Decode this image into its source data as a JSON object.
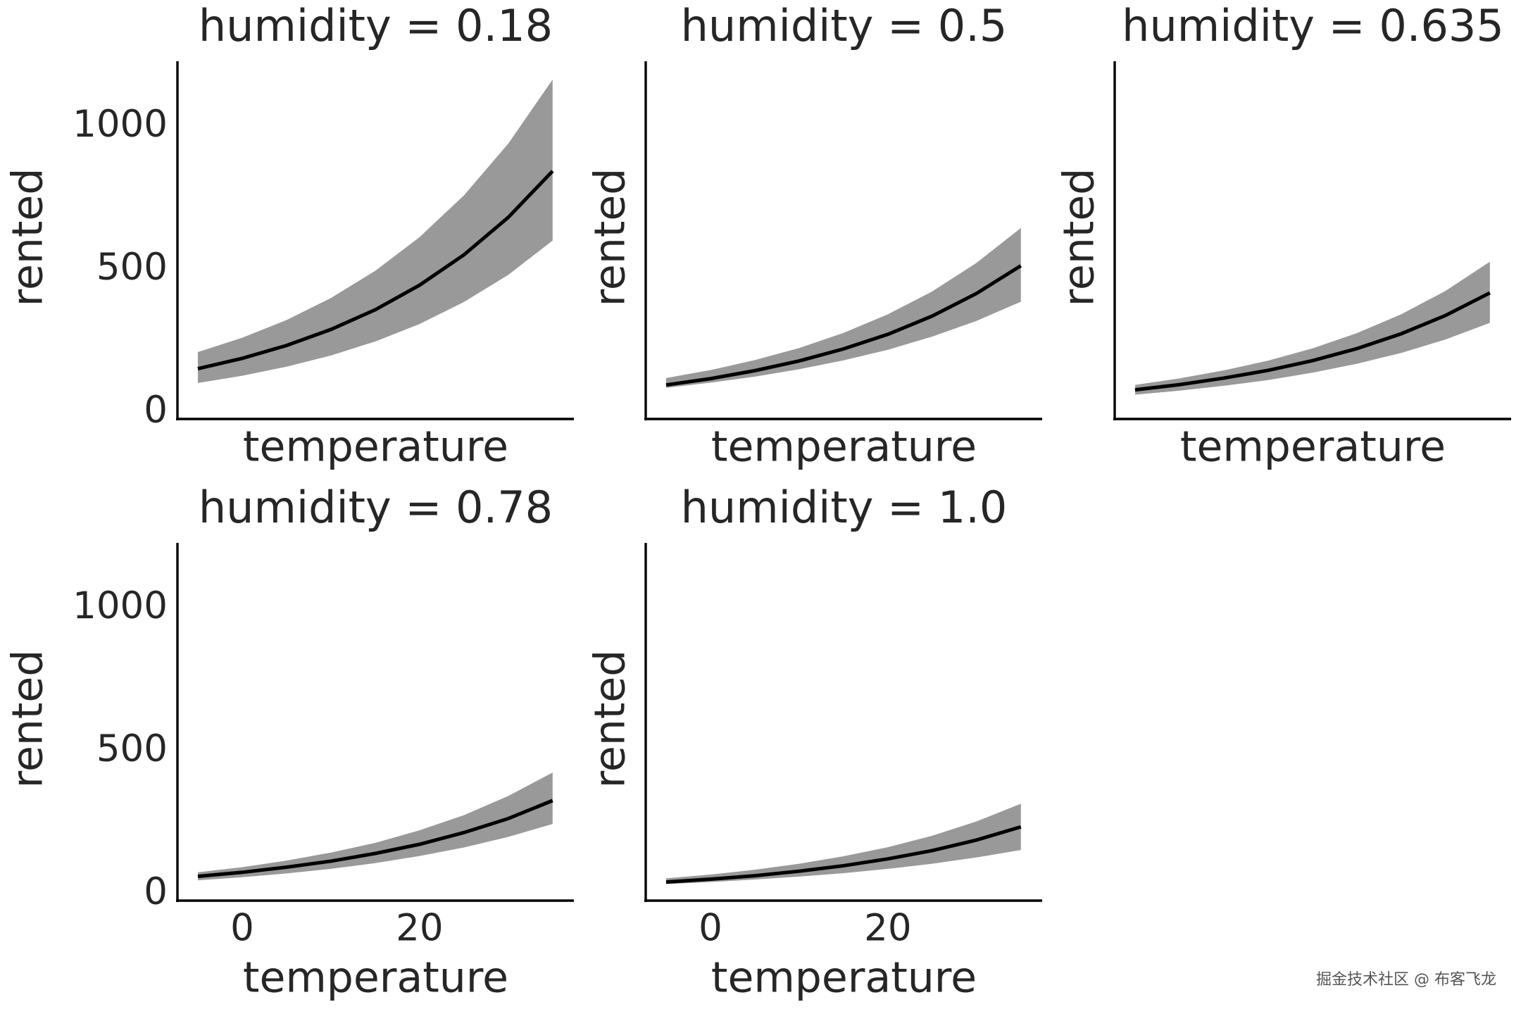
{
  "chart_data": [
    {
      "type": "line",
      "title": "humidity = 0.18",
      "x_label": "temperature",
      "y_label": "rented",
      "x": [
        -5,
        0,
        5,
        10,
        15,
        20,
        25,
        30,
        35
      ],
      "values": [
        152,
        188,
        233,
        289,
        358,
        444,
        550,
        681,
        843
      ],
      "lower": [
        102,
        127,
        159,
        198,
        247,
        308,
        385,
        480,
        600
      ],
      "upper": [
        210,
        260,
        322,
        399,
        494,
        612,
        758,
        939,
        1163
      ],
      "color": "#000000",
      "band_color": "#999999",
      "xlim": [
        -7.3,
        37.4
      ],
      "ylim": [
        -24,
        1227
      ],
      "yticks": [
        0,
        500,
        1000
      ]
    },
    {
      "type": "line",
      "title": "humidity = 0.5",
      "x_label": "temperature",
      "y_label": "rented",
      "x": [
        -5,
        0,
        5,
        10,
        15,
        20,
        25,
        30,
        35
      ],
      "values": [
        95,
        117,
        145,
        179,
        221,
        272,
        336,
        415,
        512
      ],
      "lower": [
        85,
        103,
        124,
        150,
        181,
        218,
        264,
        319,
        386
      ],
      "upper": [
        119,
        147,
        182,
        224,
        277,
        342,
        422,
        522,
        644
      ],
      "color": "#000000",
      "band_color": "#999999",
      "xlim": [
        -7.3,
        37.4
      ],
      "ylim": [
        -24,
        1227
      ]
    },
    {
      "type": "line",
      "title": "humidity = 0.635",
      "x_label": "temperature",
      "y_label": "rented",
      "x": [
        -5,
        0,
        5,
        10,
        15,
        20,
        25,
        30,
        35
      ],
      "values": [
        78,
        96,
        119,
        146,
        180,
        222,
        274,
        338,
        417
      ],
      "lower": [
        61,
        75,
        92,
        112,
        138,
        169,
        207,
        254,
        312
      ],
      "upper": [
        95,
        118,
        146,
        180,
        223,
        276,
        342,
        424,
        526
      ],
      "color": "#000000",
      "band_color": "#999999",
      "xlim": [
        -7.3,
        37.4
      ],
      "ylim": [
        -24,
        1227
      ]
    },
    {
      "type": "line",
      "title": "humidity = 0.78",
      "x_label": "temperature",
      "y_label": "rented",
      "x": [
        -5,
        0,
        5,
        10,
        15,
        20,
        25,
        30,
        35
      ],
      "values": [
        61,
        75,
        93,
        114,
        141,
        173,
        214,
        263,
        326
      ],
      "lower": [
        47,
        58,
        71,
        87,
        107,
        132,
        162,
        199,
        244
      ],
      "upper": [
        75,
        93,
        116,
        144,
        178,
        222,
        275,
        342,
        424
      ],
      "color": "#000000",
      "band_color": "#999999",
      "xlim": [
        -7.3,
        37.4
      ],
      "ylim": [
        -24,
        1227
      ],
      "yticks": [
        0,
        500,
        1000
      ],
      "xticks": [
        0,
        20
      ]
    },
    {
      "type": "line",
      "title": "humidity = 1.0",
      "x_label": "temperature",
      "y_label": "rented",
      "x": [
        -5,
        0,
        5,
        10,
        15,
        20,
        25,
        30,
        35
      ],
      "values": [
        41,
        51,
        63,
        79,
        98,
        122,
        151,
        188,
        234
      ],
      "lower": [
        34,
        41,
        50,
        60,
        72,
        87,
        105,
        127,
        153
      ],
      "upper": [
        54,
        67,
        84,
        105,
        131,
        163,
        203,
        253,
        315
      ],
      "color": "#000000",
      "band_color": "#999999",
      "xlim": [
        -7.3,
        37.4
      ],
      "ylim": [
        -24,
        1227
      ],
      "xticks": [
        0,
        20
      ]
    }
  ],
  "watermark": "掘金技术社区 @ 布客飞龙"
}
